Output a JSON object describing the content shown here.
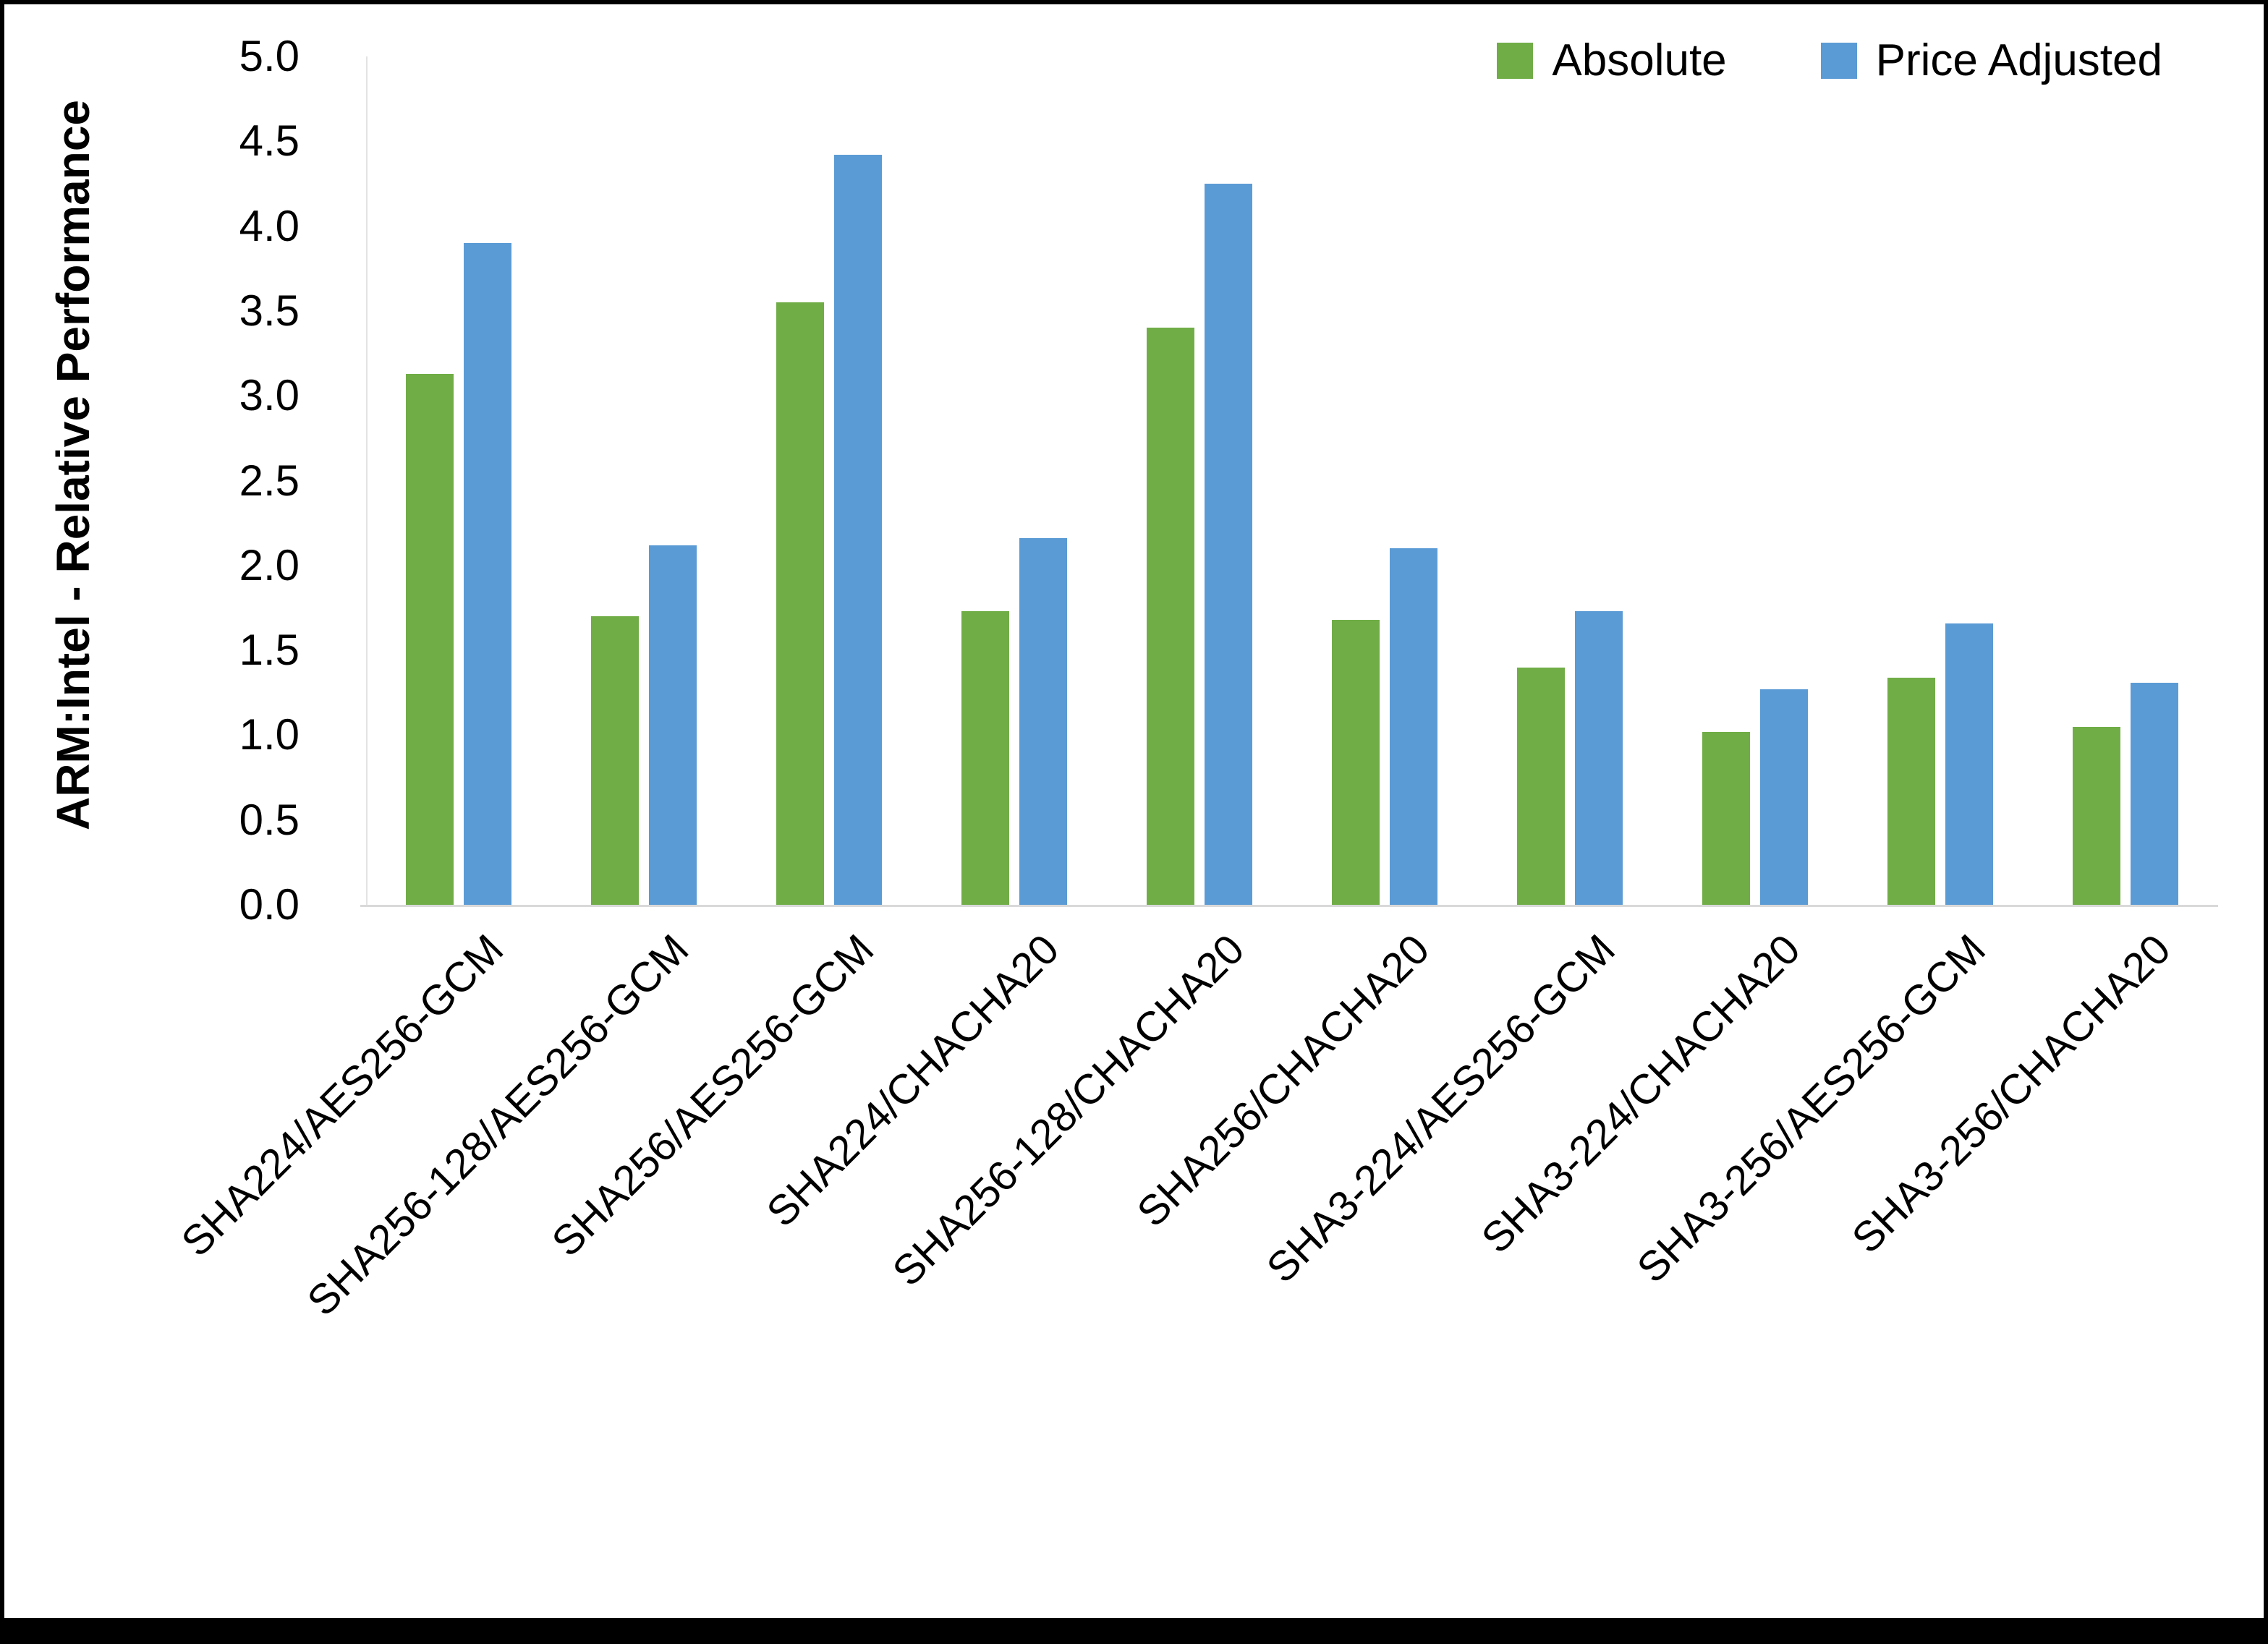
{
  "chart_data": {
    "type": "bar",
    "title": "",
    "xlabel": "",
    "ylabel": "ARM:Intel - Relative Performance",
    "ylim": [
      0,
      5
    ],
    "ytick_step": 0.5,
    "grid": false,
    "legend_position": "top-right",
    "categories": [
      "SHA224/AES256-GCM",
      "SHA256-128/AES256-GCM",
      "SHA256/AES256-GCM",
      "SHA224/CHACHA20",
      "SHA256-128/CHACHA20",
      "SHA256/CHACHA20",
      "SHA3-224/AES256-GCM",
      "SHA3-224/CHACHA20",
      "SHA3-256/AES256-GCM",
      "SHA3-256/CHACHA20"
    ],
    "series": [
      {
        "name": "Absolute",
        "color": "#70AD47",
        "values": [
          3.13,
          1.7,
          3.55,
          1.73,
          3.4,
          1.68,
          1.4,
          1.02,
          1.34,
          1.05
        ]
      },
      {
        "name": "Price Adjusted",
        "color": "#5B9BD5",
        "values": [
          3.9,
          2.12,
          4.42,
          2.16,
          4.25,
          2.1,
          1.73,
          1.27,
          1.66,
          1.31
        ]
      }
    ]
  }
}
